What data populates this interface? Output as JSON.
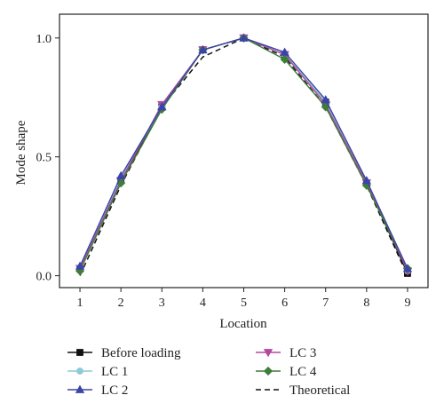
{
  "chart_data": {
    "type": "line",
    "xlabel": "Location",
    "ylabel": "Mode shape",
    "x": [
      1,
      2,
      3,
      4,
      5,
      6,
      7,
      8,
      9
    ],
    "xlim": [
      0.5,
      9.5
    ],
    "ylim": [
      -0.05,
      1.1
    ],
    "x_ticks": [
      1,
      2,
      3,
      4,
      5,
      6,
      7,
      8,
      9
    ],
    "y_ticks": [
      "0.0",
      "0.5",
      "1.0"
    ],
    "grid": false,
    "legend_position": "bottom",
    "series": [
      {
        "name": "Before loading",
        "color": "#111111",
        "marker": "square",
        "dashed": false,
        "values": [
          0.03,
          0.4,
          0.71,
          0.95,
          1.0,
          0.93,
          0.73,
          0.39,
          0.01
        ]
      },
      {
        "name": "LC 1",
        "color": "#8ec9d6",
        "marker": "circle",
        "dashed": false,
        "values": [
          0.03,
          0.41,
          0.71,
          0.95,
          1.0,
          0.93,
          0.73,
          0.39,
          0.02
        ]
      },
      {
        "name": "LC 2",
        "color": "#3b44a8",
        "marker": "triangle-up",
        "dashed": false,
        "values": [
          0.04,
          0.42,
          0.71,
          0.95,
          1.0,
          0.94,
          0.74,
          0.4,
          0.03
        ]
      },
      {
        "name": "LC 3",
        "color": "#b04a9e",
        "marker": "triangle-down",
        "dashed": false,
        "values": [
          0.03,
          0.4,
          0.72,
          0.95,
          1.0,
          0.93,
          0.72,
          0.39,
          0.02
        ]
      },
      {
        "name": "LC 4",
        "color": "#3f7d3a",
        "marker": "diamond",
        "dashed": false,
        "values": [
          0.02,
          0.39,
          0.7,
          0.95,
          1.0,
          0.91,
          0.71,
          0.38,
          0.03
        ]
      },
      {
        "name": "Theoretical",
        "color": "#111111",
        "marker": "none",
        "dashed": true,
        "values": [
          0.0,
          0.38,
          0.71,
          0.92,
          1.0,
          0.92,
          0.71,
          0.38,
          0.0
        ]
      }
    ]
  }
}
